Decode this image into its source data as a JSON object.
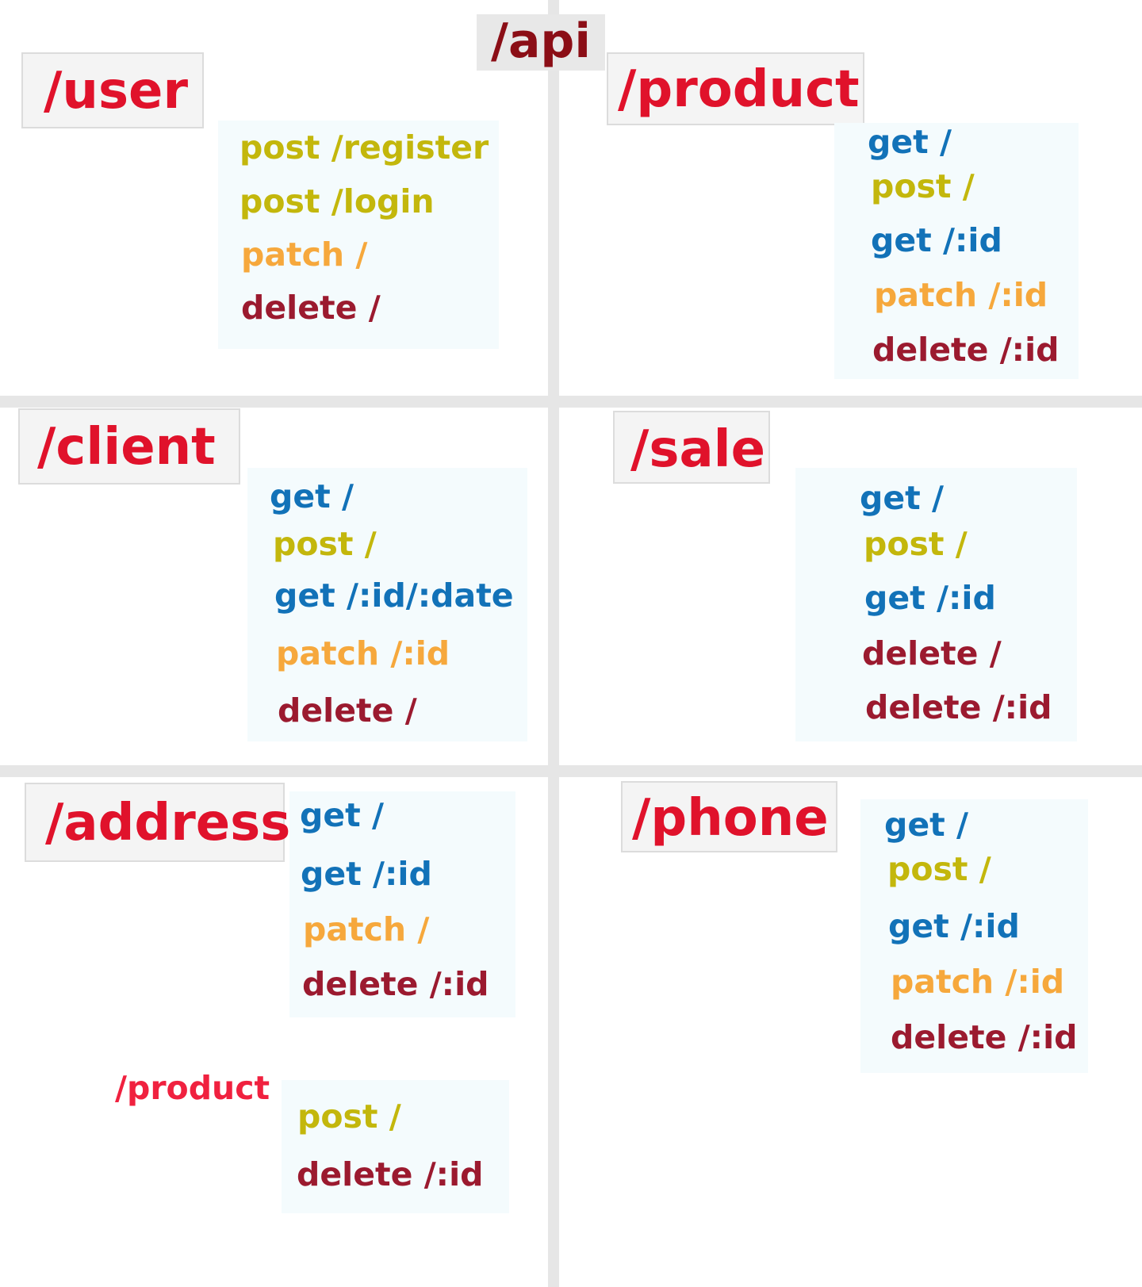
{
  "root": {
    "label": "/api"
  },
  "sections": [
    {
      "id": "user",
      "label": "/user",
      "routes": [
        {
          "method": "post",
          "text": "post /register"
        },
        {
          "method": "post",
          "text": "post /login"
        },
        {
          "method": "patch",
          "text": "patch /"
        },
        {
          "method": "delete",
          "text": "delete /"
        }
      ]
    },
    {
      "id": "product",
      "label": "/product",
      "routes": [
        {
          "method": "get",
          "text": "get /"
        },
        {
          "method": "post",
          "text": "post /"
        },
        {
          "method": "get",
          "text": "get /:id"
        },
        {
          "method": "patch",
          "text": "patch  /:id"
        },
        {
          "method": "delete",
          "text": "delete /:id"
        }
      ]
    },
    {
      "id": "client",
      "label": "/client",
      "routes": [
        {
          "method": "get",
          "text": "get /"
        },
        {
          "method": "post",
          "text": "post /"
        },
        {
          "method": "get",
          "text": "get /:id/:date"
        },
        {
          "method": "patch",
          "text": "patch /:id"
        },
        {
          "method": "delete",
          "text": "delete /"
        }
      ]
    },
    {
      "id": "sale",
      "label": "/sale",
      "routes": [
        {
          "method": "get",
          "text": "get /"
        },
        {
          "method": "post",
          "text": "post /"
        },
        {
          "method": "get",
          "text": "get /:id"
        },
        {
          "method": "delete",
          "text": "delete /"
        },
        {
          "method": "delete",
          "text": "delete /:id"
        }
      ]
    },
    {
      "id": "address",
      "label": "/address",
      "routes": [
        {
          "method": "get",
          "text": "get /"
        },
        {
          "method": "get",
          "text": "get /:id"
        },
        {
          "method": "patch",
          "text": "patch /"
        },
        {
          "method": "delete",
          "text": "delete /:id"
        }
      ]
    },
    {
      "id": "phone",
      "label": "/phone",
      "routes": [
        {
          "method": "get",
          "text": "get /"
        },
        {
          "method": "post",
          "text": "post /"
        },
        {
          "method": "get",
          "text": "get /:id"
        },
        {
          "method": "patch",
          "text": "patch /:id"
        },
        {
          "method": "delete",
          "text": "delete /:id"
        }
      ]
    },
    {
      "id": "address-product",
      "label": "/product",
      "routes": [
        {
          "method": "post",
          "text": "post /"
        },
        {
          "method": "delete",
          "text": "delete /:id"
        }
      ]
    }
  ],
  "colors": {
    "get": "#1272b8",
    "post": "#c3b70c",
    "patch": "#f6a83c",
    "delete": "#9b1a2f",
    "section_label": "#e0122b",
    "root_label": "#8b0e16"
  }
}
